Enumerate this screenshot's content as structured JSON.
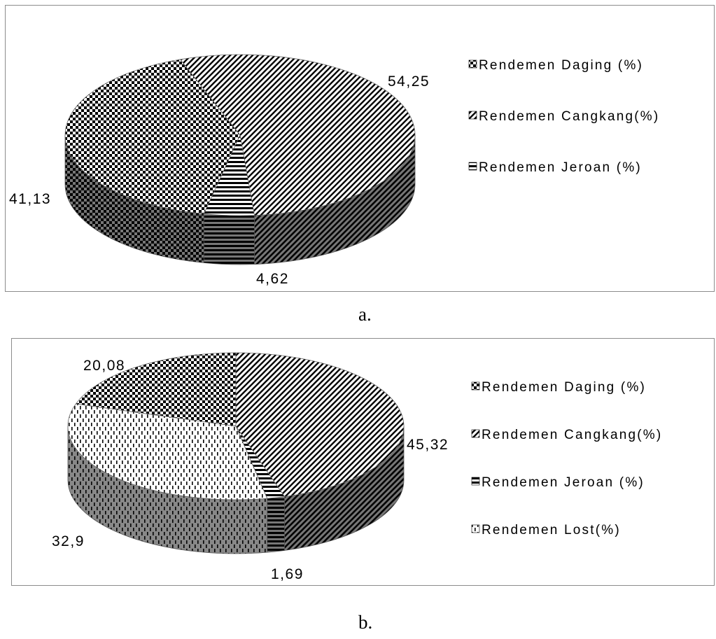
{
  "captions": [
    "a.",
    "b."
  ],
  "chart_data": [
    {
      "type": "pie",
      "style": "3d",
      "slices": [
        {
          "label": "Rendemen Daging (%)",
          "value": 41.13,
          "value_label": "41,13",
          "pattern": "checker"
        },
        {
          "label": "Rendemen Cangkang(%)",
          "value": 54.25,
          "value_label": "54,25",
          "pattern": "diagonal"
        },
        {
          "label": "Rendemen Jeroan (%)",
          "value": 4.62,
          "value_label": "4,62",
          "pattern": "horizontal"
        }
      ],
      "legend_position": "right"
    },
    {
      "type": "pie",
      "style": "3d",
      "slices": [
        {
          "label": "Rendemen Daging (%)",
          "value": 20.08,
          "value_label": "20,08",
          "pattern": "checker"
        },
        {
          "label": "Rendemen Cangkang(%)",
          "value": 45.32,
          "value_label": "45,32",
          "pattern": "diagonal"
        },
        {
          "label": "Rendemen Jeroan (%)",
          "value": 1.69,
          "value_label": "1,69",
          "pattern": "horizontal"
        },
        {
          "label": "Rendemen Lost(%)",
          "value": 32.9,
          "value_label": "32,9",
          "pattern": "dashed-vertical"
        }
      ],
      "legend_position": "right"
    }
  ]
}
